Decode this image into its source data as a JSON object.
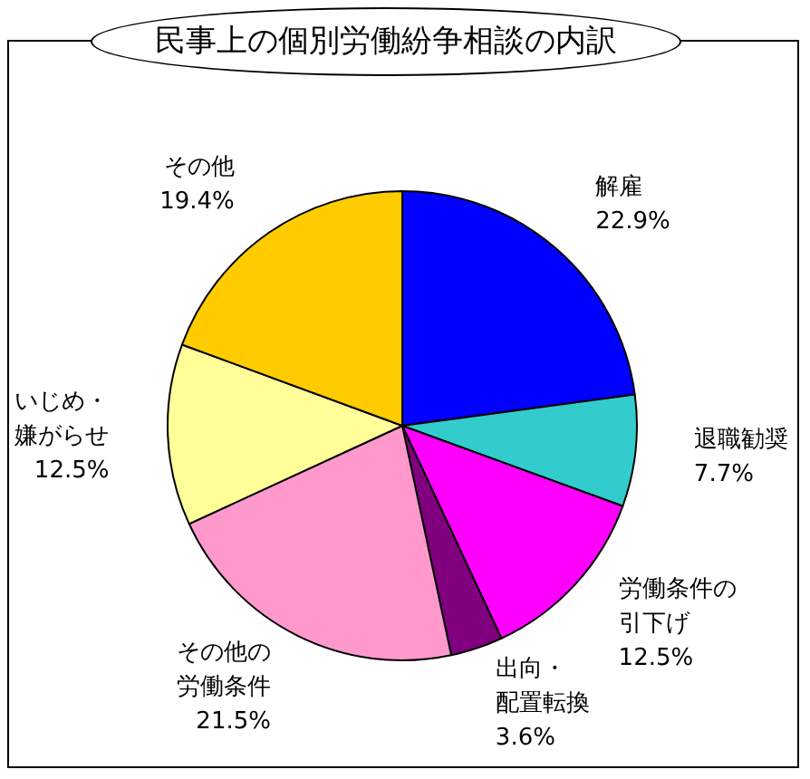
{
  "chart_data": {
    "type": "pie",
    "title": "民事上の個別労働紛争相談の内訳",
    "categories": [
      "解雇",
      "退職勧奨",
      "労働条件の引下げ",
      "出向・配置転換",
      "その他の労働条件",
      "いじめ・嫌がらせ",
      "その他"
    ],
    "values": [
      22.9,
      7.7,
      12.5,
      3.6,
      21.5,
      12.5,
      19.4
    ],
    "value_labels": [
      "22.9%",
      "7.7%",
      "12.5%",
      "3.6%",
      "21.5%",
      "12.5%",
      "19.4%"
    ],
    "colors": [
      "#0000ff",
      "#33cccc",
      "#ff00ff",
      "#800080",
      "#ff99cc",
      "#ffff99",
      "#ffcc00"
    ],
    "legend": false
  }
}
